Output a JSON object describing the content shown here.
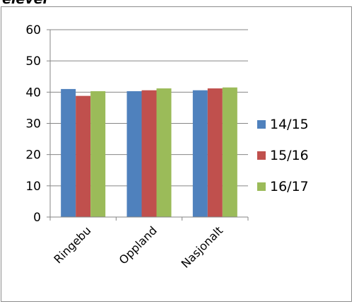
{
  "caption": "elever",
  "chart_data": {
    "type": "bar",
    "categories": [
      "Ringebu",
      "Oppland",
      "Nasjonalt"
    ],
    "series": [
      {
        "name": "14/15",
        "values": [
          41,
          40.3,
          40.6
        ]
      },
      {
        "name": "15/16",
        "values": [
          38.8,
          40.6,
          41.2
        ]
      },
      {
        "name": "16/17",
        "values": [
          40.3,
          41.2,
          41.5
        ]
      }
    ],
    "ylim": [
      0,
      60
    ],
    "yticks": [
      0,
      10,
      20,
      30,
      40,
      50,
      60
    ],
    "grid": true,
    "legend": "right",
    "colors": [
      "#4f81bd",
      "#c0504d",
      "#9bbb59"
    ],
    "title": "",
    "xlabel": "",
    "ylabel": ""
  }
}
